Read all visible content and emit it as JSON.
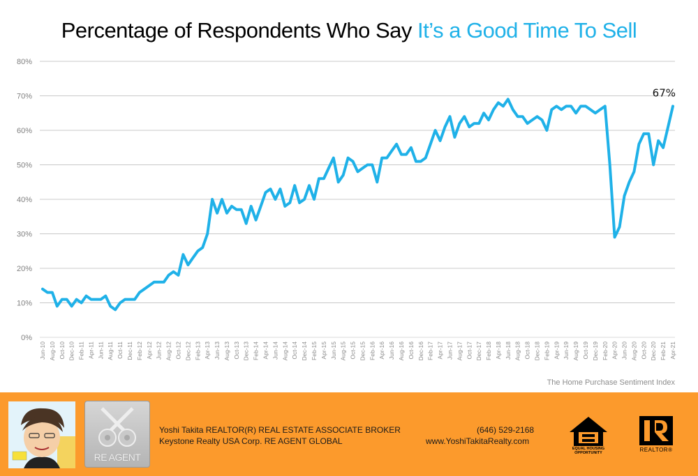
{
  "title": {
    "prefix": "Percentage of Respondents Who Say",
    "highlight": "It’s a Good Time To Sell"
  },
  "source": "The Home Purchase Sentiment Index",
  "colors": {
    "accent": "#1fb1e8",
    "line": "#1fb1e8",
    "grid": "#c8c8c8",
    "footer": "#fc9a2c"
  },
  "chart_data": {
    "type": "line",
    "title": "Percentage of Respondents Who Say It’s a Good Time To Sell",
    "xlabel": "",
    "ylabel": "",
    "ylim": [
      0,
      80
    ],
    "yticks": [
      "0%",
      "10%",
      "20%",
      "30%",
      "40%",
      "50%",
      "60%",
      "70%",
      "80%"
    ],
    "grid": true,
    "start_month": "Jun-10",
    "end_month": "Apr-21",
    "xtick_labels": [
      "Jun-10",
      "Aug-10",
      "Oct-10",
      "Dec-10",
      "Feb-11",
      "Apr-11",
      "Jun-11",
      "Aug-11",
      "Oct-11",
      "Dec-11",
      "Feb-12",
      "Apr-12",
      "Jun-12",
      "Aug-12",
      "Oct-12",
      "Dec-12",
      "Feb-13",
      "Apr-13",
      "Jun-13",
      "Aug-13",
      "Oct-13",
      "Dec-13",
      "Feb-14",
      "Apr-14",
      "Jun-14",
      "Aug-14",
      "Oct-14",
      "Dec-14",
      "Feb-15",
      "Apr-15",
      "Jun-15",
      "Aug-15",
      "Oct-15",
      "Dec-15",
      "Feb-16",
      "Apr-16",
      "Jun-16",
      "Aug-16",
      "Oct-16",
      "Dec-16",
      "Feb-17",
      "Apr-17",
      "Jun-17",
      "Aug-17",
      "Oct-17",
      "Dec-17",
      "Feb-18",
      "Apr-18",
      "Jun-18",
      "Aug-18",
      "Oct-18",
      "Dec-18",
      "Feb-19",
      "Apr-19",
      "Jun-19",
      "Aug-19",
      "Oct-19",
      "Dec-19",
      "Feb-20",
      "Apr-20",
      "Jun-20",
      "Aug-20",
      "Oct-20",
      "Dec-20",
      "Feb-21",
      "Apr-21"
    ],
    "series": [
      {
        "name": "Good time to sell (%)",
        "values": [
          14,
          13,
          13,
          9,
          11,
          11,
          9,
          11,
          10,
          12,
          11,
          11,
          11,
          12,
          9,
          8,
          10,
          11,
          11,
          11,
          13,
          14,
          15,
          16,
          16,
          16,
          18,
          19,
          18,
          24,
          21,
          23,
          25,
          26,
          30,
          40,
          36,
          40,
          36,
          38,
          37,
          37,
          33,
          38,
          34,
          38,
          42,
          43,
          40,
          43,
          38,
          39,
          44,
          39,
          40,
          44,
          40,
          46,
          46,
          49,
          52,
          45,
          47,
          52,
          51,
          48,
          49,
          50,
          50,
          45,
          52,
          52,
          54,
          56,
          53,
          53,
          55,
          51,
          51,
          52,
          56,
          60,
          57,
          61,
          64,
          58,
          62,
          64,
          61,
          62,
          62,
          65,
          63,
          66,
          68,
          67,
          69,
          66,
          64,
          64,
          62,
          63,
          64,
          63,
          60,
          66,
          67,
          66,
          67,
          67,
          65,
          67,
          67,
          66,
          65,
          66,
          67,
          50,
          29,
          32,
          41,
          45,
          48,
          56,
          59,
          59,
          50,
          57,
          55,
          61,
          67
        ]
      }
    ],
    "annotations": [
      {
        "label": "67%",
        "at": "Apr-21"
      }
    ]
  },
  "footer": {
    "line1": "Yoshi Takita REALTOR(R) REAL ESTATE ASSOCIATE BROKER",
    "line2": "Keystone Realty USA Corp.  RE AGENT GLOBAL",
    "phone": "(646) 529-2168",
    "website": "www.YoshiTakitaRealty.com",
    "reagent_logo_text": "RE AGENT",
    "eho_logo_text": "EQUAL HOUSING OPPORTUNITY",
    "realtor_logo_text": "REALTOR®"
  }
}
